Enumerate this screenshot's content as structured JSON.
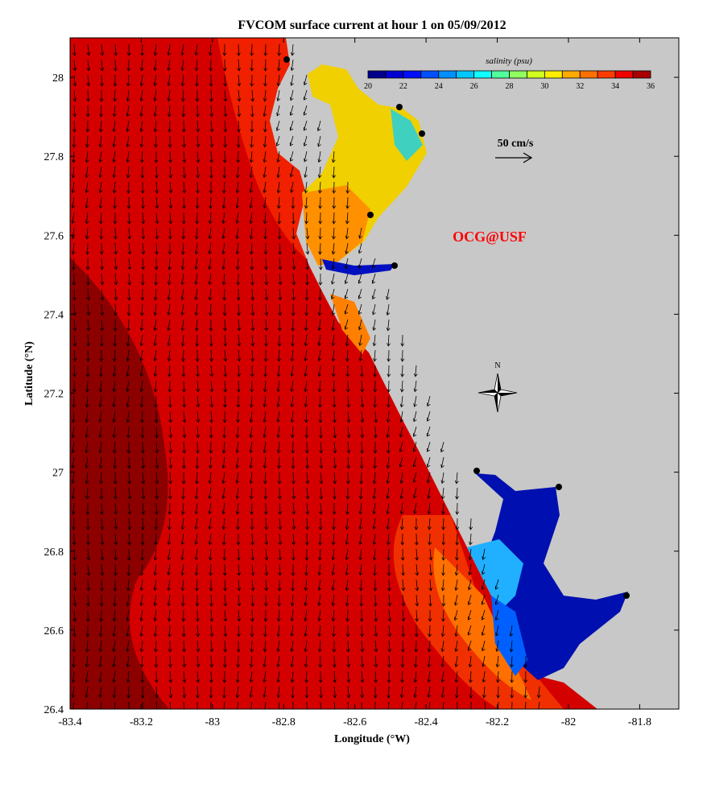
{
  "title": "FVCOM surface current at hour 1 on 05/09/2012",
  "xlabel": "Longitude (°W)",
  "ylabel": "Latitude (°N)",
  "x_ticks": [
    "-83.4",
    "-83.2",
    "-83",
    "-82.8",
    "-82.6",
    "-82.4",
    "-82.2",
    "-82",
    "-81.8"
  ],
  "x_tick_values": [
    -83.4,
    -83.2,
    -83.0,
    -82.8,
    -82.6,
    -82.4,
    -82.2,
    -82.0,
    -81.8
  ],
  "y_ticks": [
    "28",
    "27.8",
    "27.6",
    "27.4",
    "27.2",
    "27",
    "26.8",
    "26.6",
    "26.4"
  ],
  "y_tick_values": [
    28.0,
    27.8,
    27.6,
    27.4,
    27.2,
    27.0,
    26.8,
    26.6,
    26.4
  ],
  "xlim": [
    -83.4,
    -81.69
  ],
  "ylim": [
    26.4,
    28.1
  ],
  "colorbar": {
    "label": "salinity (psu)",
    "ticks": [
      "20",
      "22",
      "24",
      "26",
      "28",
      "30",
      "32",
      "34",
      "36"
    ],
    "range": [
      20,
      36
    ],
    "colors": [
      "#00008c",
      "#0000d0",
      "#0010ff",
      "#0050ff",
      "#0090ff",
      "#00c8ff",
      "#10ffff",
      "#50ff9c",
      "#90ff60",
      "#d0ff20",
      "#ffee00",
      "#ffaa00",
      "#ff7000",
      "#ff3c00",
      "#f00000",
      "#a80000"
    ]
  },
  "scale_arrow_label": "50 cm/s",
  "watermark": "OCG@USF",
  "compass_label": "N",
  "colors": {
    "land": "#c8c8c8",
    "ocean_deep": "#900000",
    "ocean": "#d40000",
    "accent": "#ff0000"
  }
}
